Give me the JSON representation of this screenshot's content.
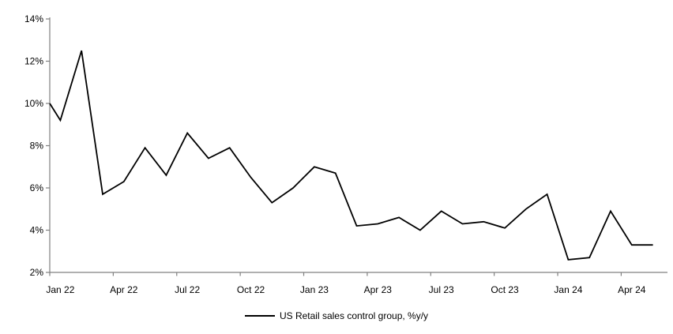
{
  "chart_data": {
    "type": "line",
    "title": "",
    "xlabel": "",
    "ylabel": "",
    "ylim": [
      2,
      14
    ],
    "grid": false,
    "axis_color": "#808080",
    "background_color": "#ffffff",
    "y_tick_labels": [
      "2%",
      "4%",
      "6%",
      "8%",
      "10%",
      "12%",
      "14%"
    ],
    "x_tick_labels": [
      "Jan 22",
      "Apr 22",
      "Jul 22",
      "Oct 22",
      "Jan 23",
      "Apr 23",
      "Jul 23",
      "Oct 23",
      "Jan 24",
      "Apr 24"
    ],
    "x_tick_every": 3,
    "left_edge_value": 10.0,
    "legend": {
      "position": "bottom-center",
      "entries": [
        "US Retail sales control group, %y/y"
      ]
    },
    "series": [
      {
        "name": "US Retail sales control group, %y/y",
        "color": "#000000",
        "x": [
          "Jan 22",
          "Feb 22",
          "Mar 22",
          "Apr 22",
          "May 22",
          "Jun 22",
          "Jul 22",
          "Aug 22",
          "Sep 22",
          "Oct 22",
          "Nov 22",
          "Dec 22",
          "Jan 23",
          "Feb 23",
          "Mar 23",
          "Apr 23",
          "May 23",
          "Jun 23",
          "Jul 23",
          "Aug 23",
          "Sep 23",
          "Oct 23",
          "Nov 23",
          "Dec 23",
          "Jan 24",
          "Feb 24",
          "Mar 24",
          "Apr 24",
          "May 24"
        ],
        "values": [
          9.2,
          12.5,
          5.7,
          6.3,
          7.9,
          6.6,
          8.6,
          7.4,
          7.9,
          6.5,
          5.3,
          6.0,
          7.0,
          6.7,
          4.2,
          4.3,
          4.6,
          4.0,
          4.9,
          4.3,
          4.4,
          4.1,
          5.0,
          5.7,
          2.6,
          2.7,
          4.9,
          3.3,
          3.3
        ]
      }
    ]
  }
}
